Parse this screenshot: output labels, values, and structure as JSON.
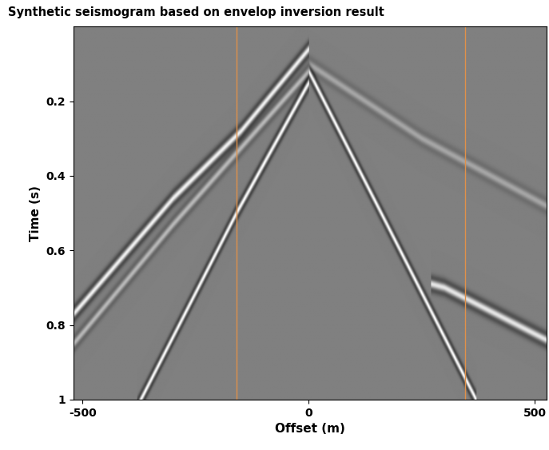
{
  "chart_data": {
    "type": "seismogram",
    "title": "Synthetic seismogram based on envelop inversion result",
    "x_label": "Offset (m)",
    "y_label": "Time (s)",
    "xlim": [
      -520,
      525
    ],
    "ylim": [
      1,
      0
    ],
    "xticks": [
      -500,
      0,
      500
    ],
    "yticks": [
      0.2,
      0.4,
      0.6,
      0.8,
      1
    ],
    "clim": [
      -1,
      1
    ],
    "color": "gray",
    "events": [
      {
        "x": [
          -520,
          -300,
          -150,
          0
        ],
        "t": [
          0.77,
          0.46,
          0.28,
          0.06
        ],
        "amplitude": 0.9
      },
      {
        "x": [
          -520,
          -300,
          0
        ],
        "t": [
          0.85,
          0.53,
          0.12
        ],
        "amplitude": 0.45
      },
      {
        "x": [
          -380,
          -160,
          0
        ],
        "t": [
          1.02,
          0.5,
          0.15
        ],
        "amplitude": 1.0
      },
      {
        "x": [
          0,
          160,
          370
        ],
        "t": [
          0.12,
          0.5,
          1.0
        ],
        "amplitude": 1.0
      },
      {
        "x": [
          270,
          300,
          525
        ],
        "t": [
          0.69,
          0.7,
          0.84
        ],
        "amplitude": 0.8
      },
      {
        "x": [
          0,
          250,
          525
        ],
        "t": [
          0.1,
          0.3,
          0.48
        ],
        "amplitude": 0.3
      }
    ],
    "vertical_lines": {
      "x": [
        -160,
        345
      ],
      "color": "#e0914a"
    }
  }
}
